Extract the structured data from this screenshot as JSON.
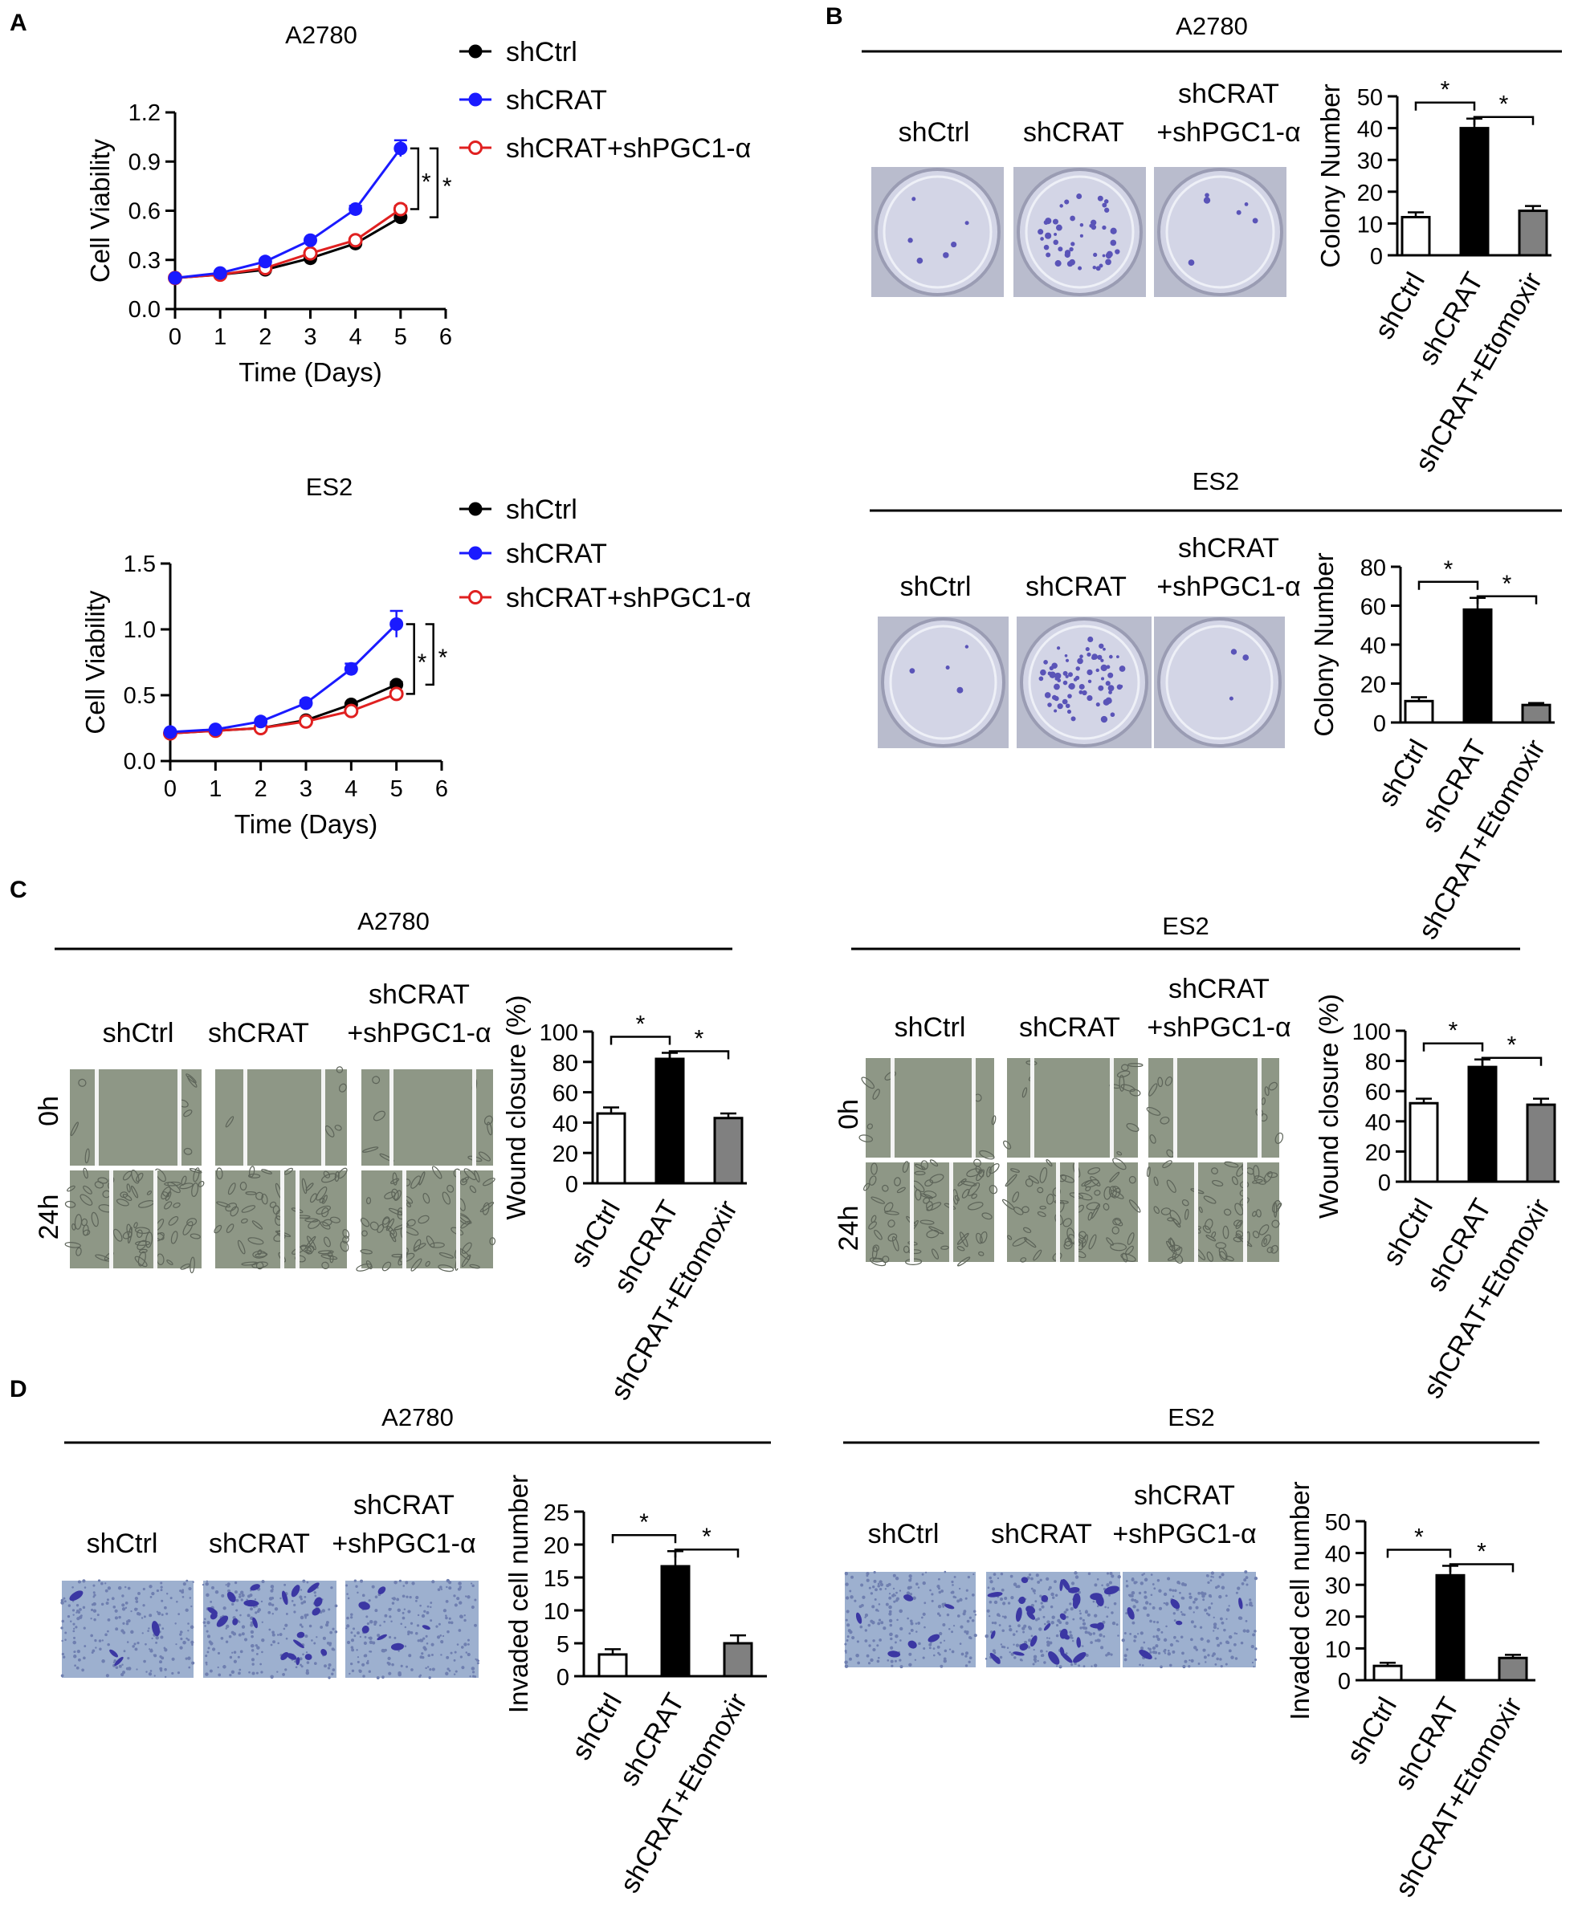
{
  "panel_labels": [
    "A",
    "B",
    "C",
    "D"
  ],
  "colors": {
    "shCtrl": "#000000",
    "shCRAT": "#1a1aff",
    "shCRAT+shPGC1-α": "#e02020",
    "bar_shCtrl": "#ffffff",
    "bar_shCRAT": "#000000",
    "bar_etomoxir": "#808080",
    "stain": "#5a54b8",
    "plate": "#d3d5e6",
    "wound": "#8e9786"
  },
  "images": {
    "B": {
      "labels": [
        "shCtrl",
        "shCRAT",
        "shCRAT\n+shPGC1-α"
      ]
    },
    "B2": {
      "labels": [
        "shCtrl",
        "shCRAT",
        "shCRAT\n+shPGC1-α"
      ]
    },
    "C": {
      "labels": [
        "shCtrl",
        "shCRAT",
        "shCRAT\n+shPGC1-α"
      ],
      "rows": [
        "0h",
        "24h"
      ]
    },
    "C2": {
      "labels": [
        "shCtrl",
        "shCRAT",
        "shCRAT\n+shPGC1-α"
      ],
      "rows": [
        "0h",
        "24h"
      ]
    },
    "D": {
      "labels": [
        "shCtrl",
        "shCRAT",
        "shCRAT\n+shPGC1-α"
      ]
    },
    "D2": {
      "labels": [
        "shCtrl",
        "shCRAT",
        "shCRAT\n+shPGC1-α"
      ]
    }
  },
  "chart_data": [
    {
      "id": "A1",
      "panel": "A",
      "type": "line",
      "title": "A2780",
      "xlabel": "Time (Days)",
      "ylabel": "Cell Viability",
      "xlim": [
        0,
        6
      ],
      "ylim": [
        0,
        1.2
      ],
      "xticks": [
        0,
        1,
        2,
        3,
        4,
        5,
        6
      ],
      "yticks": [
        0.0,
        0.3,
        0.6,
        0.9,
        1.2
      ],
      "ytick_labels": [
        "0.0",
        "0.3",
        "0.6",
        "0.9",
        "1.2"
      ],
      "legend_position": "right",
      "x": [
        0,
        1,
        2,
        3,
        4,
        5
      ],
      "series": [
        {
          "name": "shCtrl",
          "values": [
            0.19,
            0.21,
            0.24,
            0.31,
            0.4,
            0.56
          ],
          "err": [
            0.01,
            0.01,
            0.01,
            0.01,
            0.01,
            0.04
          ]
        },
        {
          "name": "shCRAT",
          "values": [
            0.19,
            0.22,
            0.29,
            0.42,
            0.61,
            0.98
          ],
          "err": [
            0.01,
            0.01,
            0.01,
            0.01,
            0.02,
            0.05
          ]
        },
        {
          "name": "shCRAT+shPGC1-α",
          "values": [
            0.19,
            0.21,
            0.25,
            0.34,
            0.42,
            0.61
          ],
          "err": [
            0.01,
            0.01,
            0.01,
            0.01,
            0.01,
            0.02
          ]
        }
      ],
      "significance": [
        "*",
        "*"
      ]
    },
    {
      "id": "A2",
      "panel": "A",
      "type": "line",
      "title": "ES2",
      "xlabel": "Time (Days)",
      "ylabel": "Cell Viability",
      "xlim": [
        0,
        6
      ],
      "ylim": [
        0,
        1.5
      ],
      "xticks": [
        0,
        1,
        2,
        3,
        4,
        5,
        6
      ],
      "yticks": [
        0.0,
        0.5,
        1.0,
        1.5
      ],
      "ytick_labels": [
        "0.0",
        "0.5",
        "1.0",
        "1.5"
      ],
      "legend_position": "right",
      "x": [
        0,
        1,
        2,
        3,
        4,
        5
      ],
      "series": [
        {
          "name": "shCtrl",
          "values": [
            0.21,
            0.23,
            0.25,
            0.31,
            0.43,
            0.58
          ],
          "err": [
            0.01,
            0.01,
            0.01,
            0.01,
            0.01,
            0.02
          ]
        },
        {
          "name": "shCRAT",
          "values": [
            0.22,
            0.24,
            0.3,
            0.44,
            0.7,
            1.04
          ],
          "err": [
            0.01,
            0.01,
            0.01,
            0.02,
            0.04,
            0.1
          ]
        },
        {
          "name": "shCRAT+shPGC1-α",
          "values": [
            0.21,
            0.23,
            0.25,
            0.3,
            0.38,
            0.51
          ],
          "err": [
            0.01,
            0.01,
            0.01,
            0.01,
            0.01,
            0.02
          ]
        }
      ],
      "significance": [
        "*",
        "*"
      ]
    },
    {
      "id": "B1",
      "panel": "B",
      "type": "bar",
      "title": "A2780",
      "ylabel": "Colony Number",
      "ylim": [
        0,
        50
      ],
      "yticks": [
        0,
        10,
        20,
        30,
        40,
        50
      ],
      "categories": [
        "shCtrl",
        "shCRAT",
        "shCRAT+Etomoxir"
      ],
      "values": [
        12,
        40,
        14
      ],
      "err": [
        1.5,
        3,
        1.5
      ],
      "significance": [
        "*",
        "*"
      ]
    },
    {
      "id": "B2",
      "panel": "B",
      "type": "bar",
      "title": "ES2",
      "ylabel": "Colony Number",
      "ylim": [
        0,
        80
      ],
      "yticks": [
        0,
        20,
        40,
        60,
        80
      ],
      "categories": [
        "shCtrl",
        "shCRAT",
        "shCRAT+Etomoxir"
      ],
      "values": [
        11,
        58,
        9
      ],
      "err": [
        2,
        6,
        1
      ],
      "significance": [
        "*",
        "*"
      ]
    },
    {
      "id": "C1",
      "panel": "C",
      "type": "bar",
      "title": "A2780",
      "ylabel": "Wound closure (%)",
      "ylim": [
        0,
        100
      ],
      "yticks": [
        0,
        20,
        40,
        60,
        80,
        100
      ],
      "categories": [
        "shCtrl",
        "shCRAT",
        "shCRAT+Etomoxir"
      ],
      "values": [
        46,
        82,
        43
      ],
      "err": [
        4,
        4,
        3
      ],
      "significance": [
        "*",
        "*"
      ]
    },
    {
      "id": "C2",
      "panel": "C",
      "type": "bar",
      "title": "ES2",
      "ylabel": "Wound closure (%)",
      "ylim": [
        0,
        100
      ],
      "yticks": [
        0,
        20,
        40,
        60,
        80,
        100
      ],
      "categories": [
        "shCtrl",
        "shCRAT",
        "shCRAT+Etomoxir"
      ],
      "values": [
        52,
        76,
        51
      ],
      "err": [
        3,
        5,
        4
      ],
      "significance": [
        "*",
        "*"
      ]
    },
    {
      "id": "D1",
      "panel": "D",
      "type": "bar",
      "title": "A2780",
      "ylabel": "Invaded cell number",
      "ylim": [
        0,
        25
      ],
      "yticks": [
        0,
        5,
        10,
        15,
        20,
        25
      ],
      "categories": [
        "shCtrl",
        "shCRAT",
        "shCRAT+Etomoxir"
      ],
      "values": [
        3.3,
        16.7,
        5.0
      ],
      "err": [
        0.8,
        2.3,
        1.2
      ],
      "significance": [
        "*",
        "*"
      ]
    },
    {
      "id": "D2",
      "panel": "D",
      "type": "bar",
      "title": "ES2",
      "ylabel": "Invaded cell number",
      "ylim": [
        0,
        50
      ],
      "yticks": [
        0,
        10,
        20,
        30,
        40,
        50
      ],
      "categories": [
        "shCtrl",
        "shCRAT",
        "shCRAT+Etomoxir"
      ],
      "values": [
        4.5,
        33,
        7
      ],
      "err": [
        1,
        3,
        1
      ],
      "significance": [
        "*",
        "*"
      ]
    }
  ]
}
